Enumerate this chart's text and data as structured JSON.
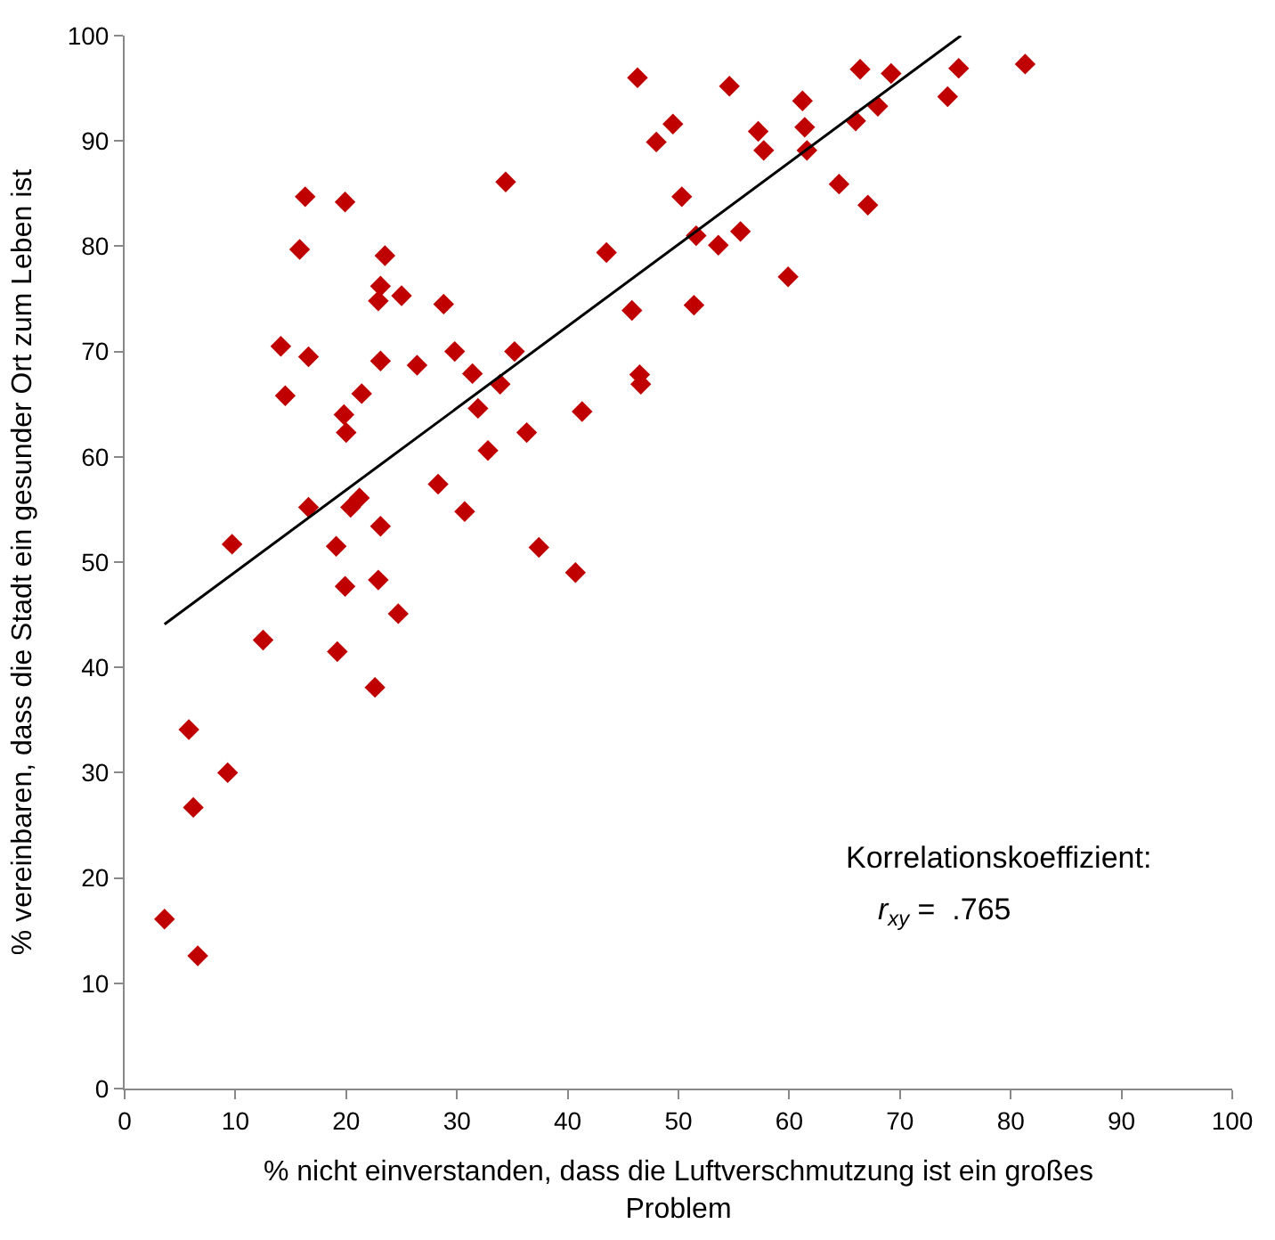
{
  "chart_data": {
    "type": "scatter",
    "xlabel": "% nicht einverstanden, dass die Luftverschmutzung ist ein großes Problem",
    "ylabel": "% vereinbaren, dass die Stadt ein gesunder Ort zum Leben ist",
    "xlim": [
      0,
      100
    ],
    "xticks": [
      0,
      10,
      20,
      30,
      40,
      50,
      60,
      70,
      80,
      90,
      100
    ],
    "ylim": [
      0,
      100
    ],
    "yticks": [
      0,
      10,
      20,
      30,
      40,
      50,
      60,
      70,
      80,
      90,
      100
    ],
    "legend": false,
    "marker": "diamond",
    "annotations": [
      "Korrelationskoeffizient:",
      "r$_{xy}$ =  .765"
    ],
    "series": [
      {
        "color": "#c00000",
        "x": [
          46.3,
          49.5,
          48.0,
          16.3,
          19.9,
          34.4,
          50.3,
          51.6,
          15.8,
          43.5,
          23.5,
          23.1,
          22.9,
          25.0,
          28.8,
          45.8,
          51.4,
          14.1,
          16.6,
          23.1,
          26.4,
          29.8,
          31.4,
          35.2,
          33.9,
          46.5,
          46.6,
          14.5,
          21.4,
          19.8,
          20.0,
          31.9,
          41.3,
          36.3,
          32.8,
          28.3,
          30.7,
          16.6,
          20.4,
          21.2,
          23.1,
          9.7,
          19.1,
          37.4,
          40.7,
          19.9,
          22.9,
          24.7,
          12.5,
          19.2,
          22.6,
          5.8,
          9.3,
          6.2,
          3.6,
          6.6,
          54.6,
          66.4,
          69.2,
          75.3,
          81.3,
          74.3,
          61.2,
          68.0,
          57.2,
          61.4,
          66.0,
          57.7,
          61.6,
          64.5,
          67.1,
          53.6,
          55.6,
          59.9
        ],
        "values": [
          96.0,
          91.6,
          89.9,
          84.7,
          84.2,
          86.1,
          84.7,
          81.0,
          79.7,
          79.4,
          79.1,
          76.2,
          74.8,
          75.3,
          74.5,
          73.9,
          74.4,
          70.5,
          69.5,
          69.1,
          68.7,
          70.0,
          67.9,
          70.0,
          66.9,
          67.8,
          66.9,
          65.8,
          66.0,
          64.0,
          62.3,
          64.6,
          64.3,
          62.3,
          60.6,
          57.4,
          54.8,
          55.2,
          55.2,
          56.1,
          53.4,
          51.7,
          51.5,
          51.4,
          49.0,
          47.7,
          48.3,
          45.1,
          42.6,
          41.5,
          38.1,
          34.1,
          30.0,
          26.7,
          16.1,
          12.6,
          95.2,
          96.8,
          96.4,
          96.9,
          97.3,
          94.2,
          93.8,
          93.3,
          90.9,
          91.3,
          91.9,
          89.1,
          89.1,
          85.9,
          83.9,
          80.1,
          81.4,
          77.1
        ]
      },
      {
        "type": "line",
        "color": "#000000",
        "marker": "none",
        "line_style": "solid",
        "x": [
          3.6,
          75.5
        ],
        "values": [
          44.1,
          100
        ]
      }
    ]
  }
}
